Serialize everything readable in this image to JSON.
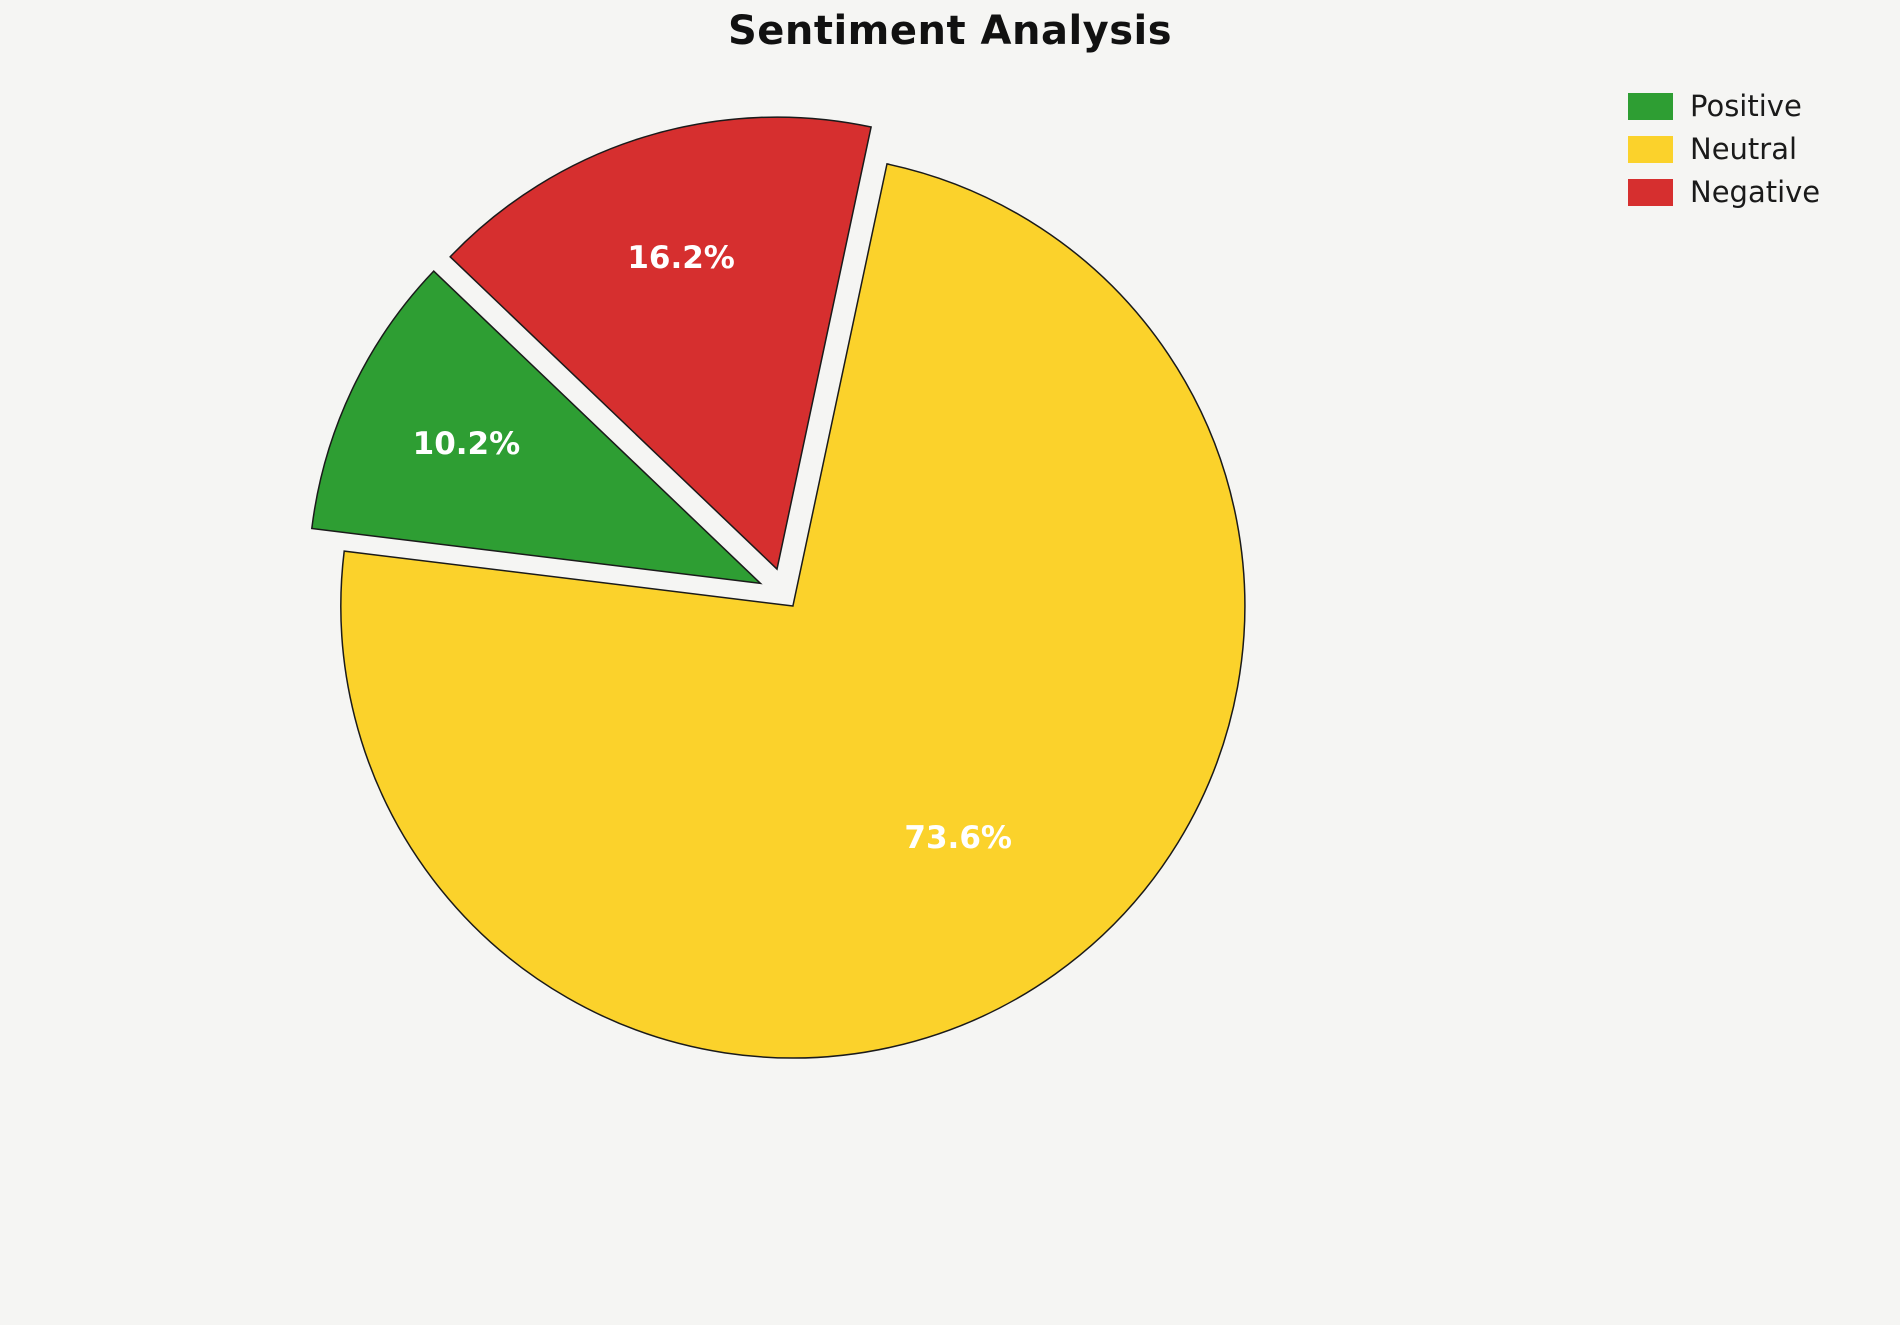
{
  "chart_data": {
    "type": "pie",
    "title": "Sentiment Analysis",
    "legend_position": "upper right",
    "direction": "counterclockwise",
    "start_angle": 136.3,
    "background_color": "#f5f5f3",
    "wedge_edge_color": "#1a1a1a",
    "pct_label_color": "#ffffff",
    "slices": [
      {
        "label": "Positive",
        "value": 10.2,
        "pct_label": "10.2%",
        "color": "#2e9e33",
        "explode": 0.06,
        "label_distance": 0.72
      },
      {
        "label": "Neutral",
        "value": 73.6,
        "pct_label": "73.6%",
        "color": "#fbd22b",
        "explode": 0.03,
        "label_distance": 0.63
      },
      {
        "label": "Negative",
        "value": 16.2,
        "pct_label": "16.2%",
        "color": "#d62f2f",
        "explode": 0.06,
        "label_distance": 0.72
      }
    ]
  }
}
